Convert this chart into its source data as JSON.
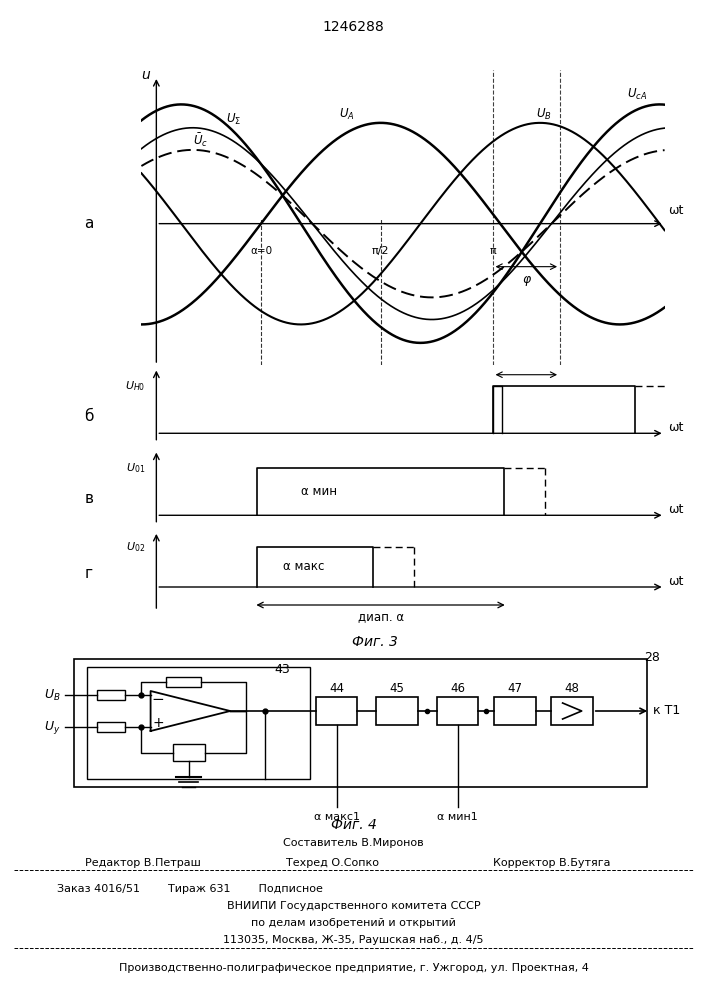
{
  "title": "1246288",
  "fig3_caption": "Фиг. 3",
  "fig4_caption": "Фиг. 4",
  "footer_line1": "Составитель В.Миронов",
  "footer_line2_left": "Редактор В.Петраш",
  "footer_line2_mid": "Техред О.Сопко",
  "footer_line2_right": "Корректор В.Бутяга",
  "footer_line3": "Заказ 4016/51        Тираж 631        Подписное",
  "footer_line4": "ВНИИПИ Государственного комитета СССР",
  "footer_line5": "по делам изобретений и открытий",
  "footer_line6": "113035, Москва, Ж-35, Раушская наб., д. 4/5",
  "footer_line7": "Производственно-полиграфическое предприятие, г. Ужгород, ул. Проектная, 4",
  "background_color": "#ffffff"
}
